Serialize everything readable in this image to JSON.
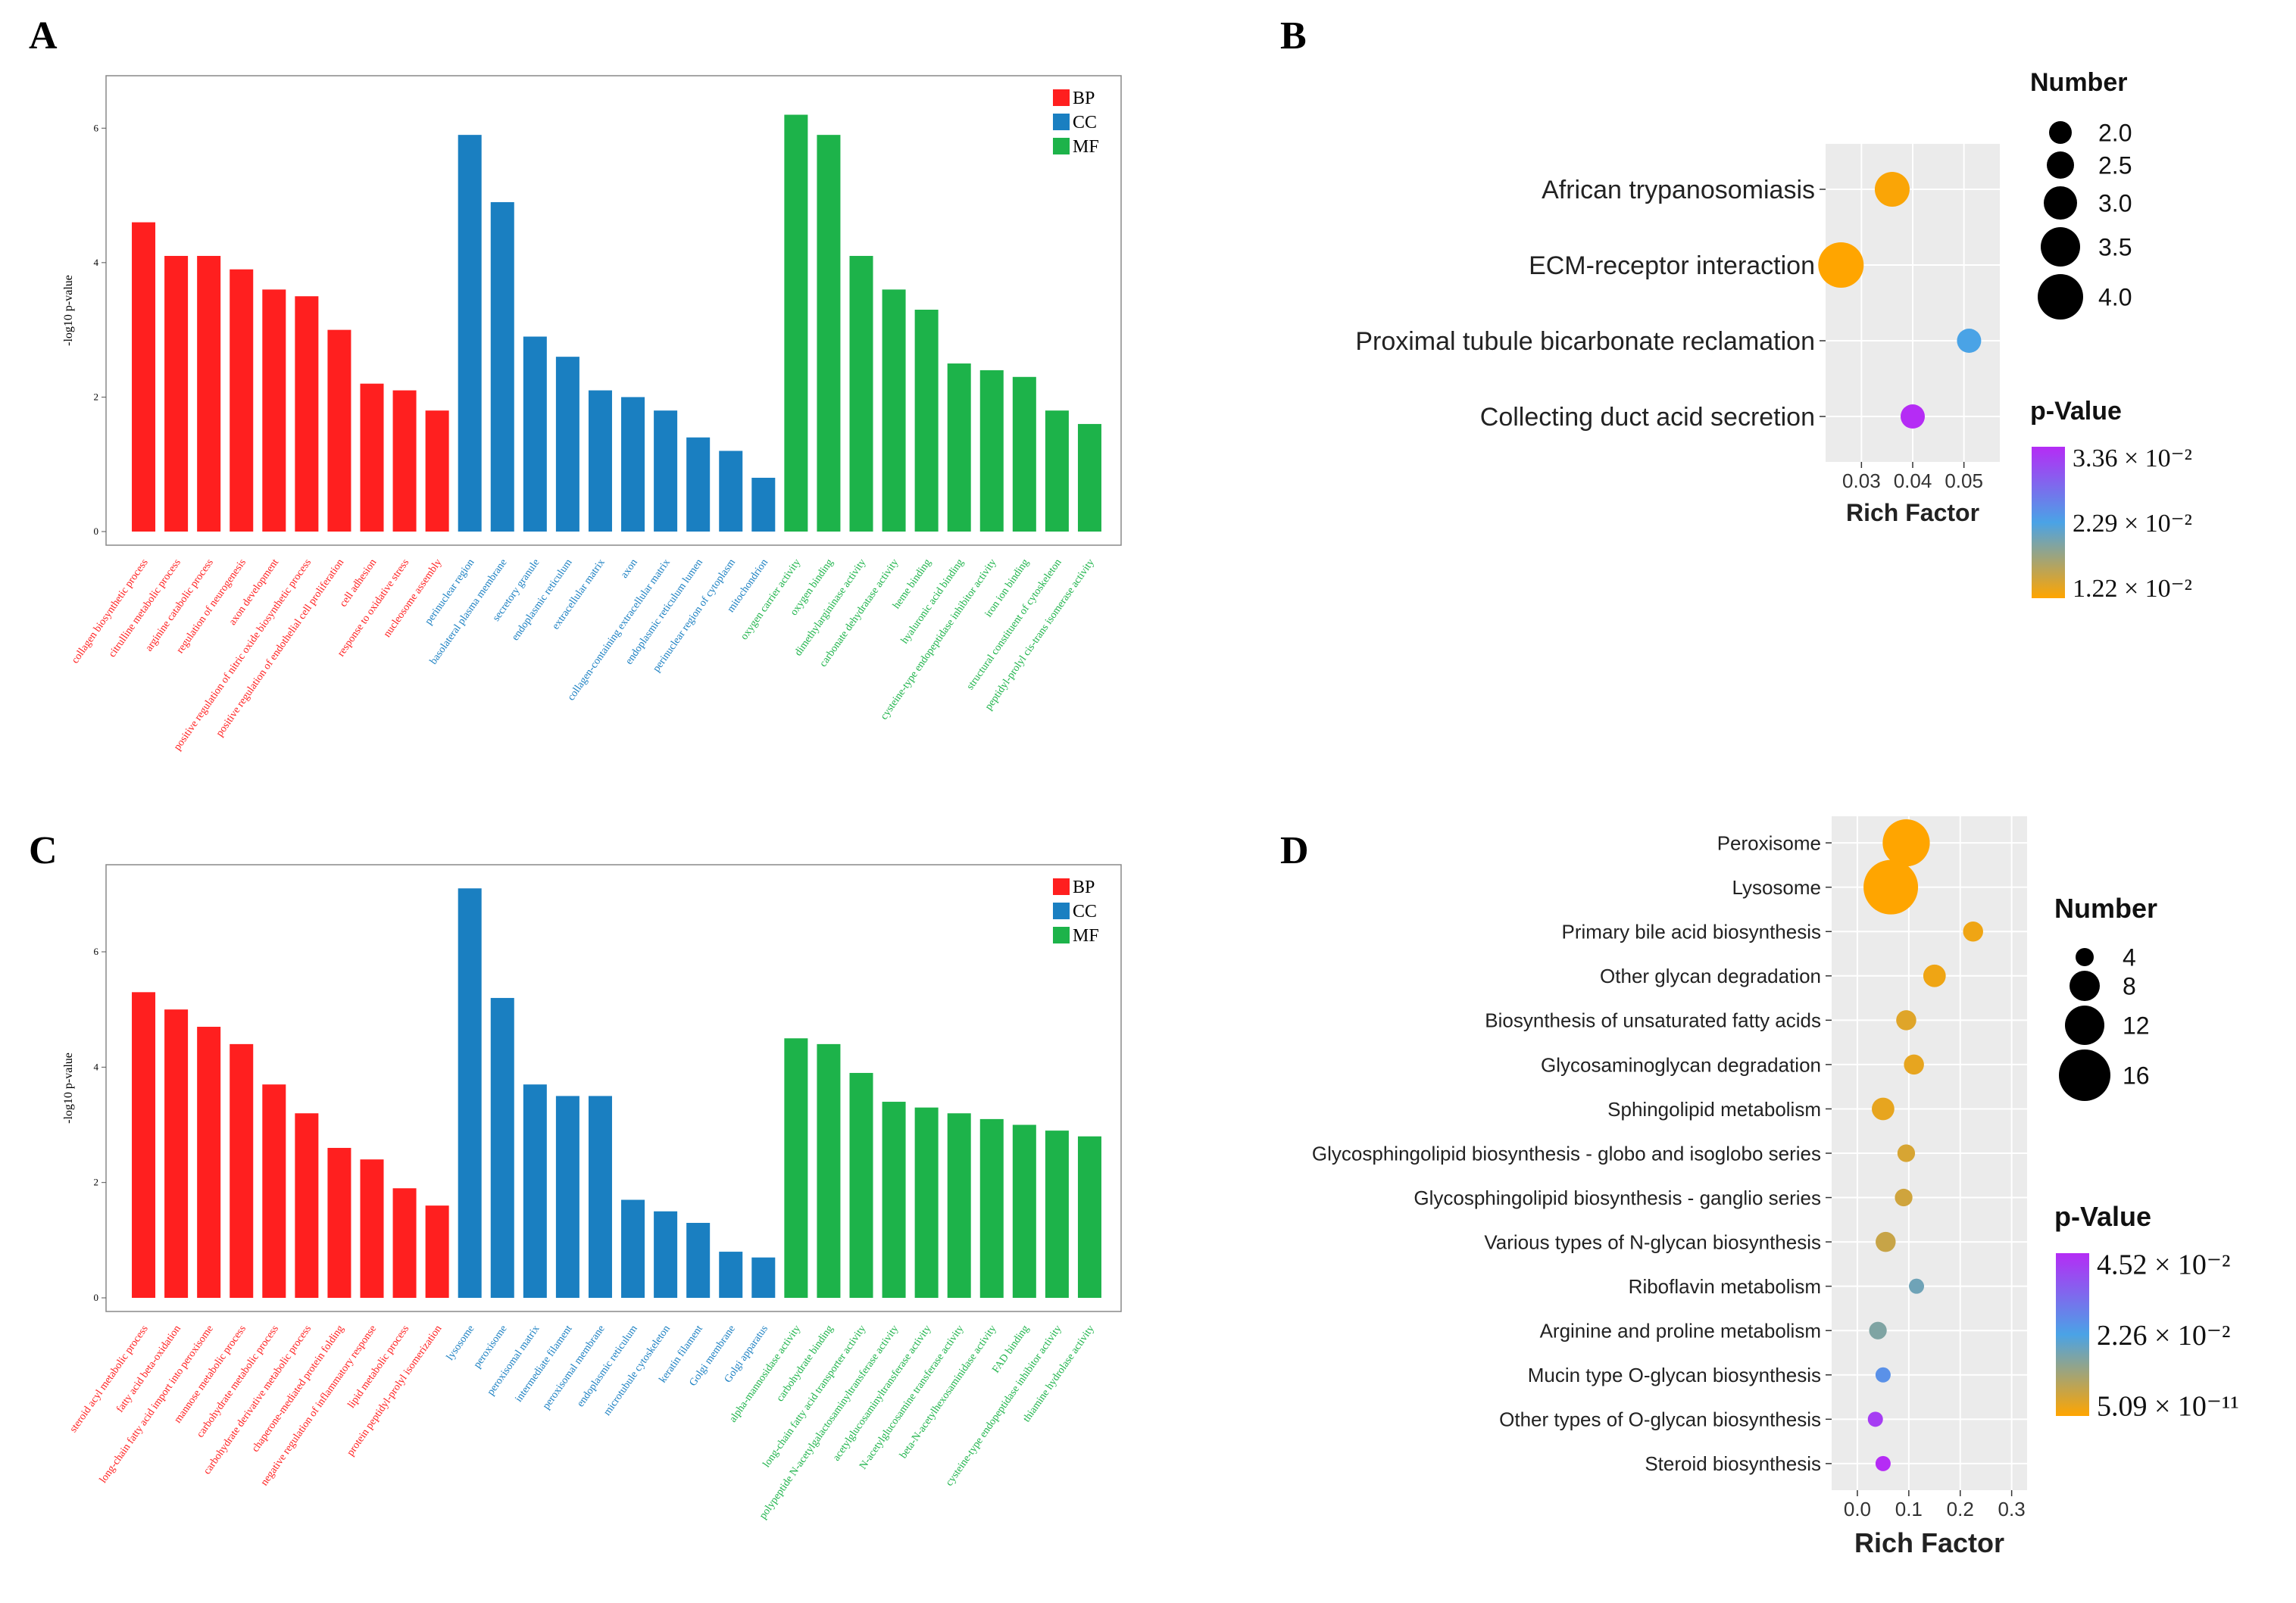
{
  "colors": {
    "BP": "#ff1f1f",
    "CC": "#1a7fc1",
    "MF": "#1db34a",
    "pv_low": "#ffa500",
    "pv_mid": "#4aa3e6",
    "pv_high": "#b52cf5"
  },
  "chart_data": [
    {
      "panel": "A",
      "type": "bar",
      "ylabel": "-log10 p-value",
      "ylim": [
        0,
        6.6
      ],
      "yticks": [
        "0",
        "2",
        "4",
        "6"
      ],
      "legend": [
        "BP",
        "CC",
        "MF"
      ],
      "legend_position": "top-right",
      "bars": [
        {
          "label": "collagen biosynthetic process",
          "group": "BP",
          "value": 4.6
        },
        {
          "label": "citrulline metabolic process",
          "group": "BP",
          "value": 4.1
        },
        {
          "label": "arginine catabolic process",
          "group": "BP",
          "value": 4.1
        },
        {
          "label": "regulation of neurogenesis",
          "group": "BP",
          "value": 3.9
        },
        {
          "label": "axon development",
          "group": "BP",
          "value": 3.6
        },
        {
          "label": "positive regulation of nitric oxide biosynthetic process",
          "group": "BP",
          "value": 3.5
        },
        {
          "label": "positive regulation of endothelial cell proliferation",
          "group": "BP",
          "value": 3.0
        },
        {
          "label": "cell adhesion",
          "group": "BP",
          "value": 2.2
        },
        {
          "label": "response to oxidative stress",
          "group": "BP",
          "value": 2.1
        },
        {
          "label": "nucleosome assembly",
          "group": "BP",
          "value": 1.8
        },
        {
          "label": "perinuclear region",
          "group": "CC",
          "value": 5.9
        },
        {
          "label": "basolateral plasma membrane",
          "group": "CC",
          "value": 4.9
        },
        {
          "label": "secretory granule",
          "group": "CC",
          "value": 2.9
        },
        {
          "label": "endoplasmic reticulum",
          "group": "CC",
          "value": 2.6
        },
        {
          "label": "extracellular matrix",
          "group": "CC",
          "value": 2.1
        },
        {
          "label": "axon",
          "group": "CC",
          "value": 2.0
        },
        {
          "label": "collagen-containing extracellular matrix",
          "group": "CC",
          "value": 1.8
        },
        {
          "label": "endoplasmic reticulum lumen",
          "group": "CC",
          "value": 1.4
        },
        {
          "label": "perinuclear region of cytoplasm",
          "group": "CC",
          "value": 1.2
        },
        {
          "label": "mitochondrion",
          "group": "CC",
          "value": 0.8
        },
        {
          "label": "oxygen carrier activity",
          "group": "MF",
          "value": 6.2
        },
        {
          "label": "oxygen binding",
          "group": "MF",
          "value": 5.9
        },
        {
          "label": "dimethylargininase activity",
          "group": "MF",
          "value": 4.1
        },
        {
          "label": "carbonate dehydratase activity",
          "group": "MF",
          "value": 3.6
        },
        {
          "label": "heme binding",
          "group": "MF",
          "value": 3.3
        },
        {
          "label": "hyaluronic acid binding",
          "group": "MF",
          "value": 2.5
        },
        {
          "label": "cysteine-type endopeptidase inhibitor activity",
          "group": "MF",
          "value": 2.4
        },
        {
          "label": "iron ion binding",
          "group": "MF",
          "value": 2.3
        },
        {
          "label": "structural constituent of cytoskeleton",
          "group": "MF",
          "value": 1.8
        },
        {
          "label": "peptidyl-prolyl cis-trans isomerase activity",
          "group": "MF",
          "value": 1.6
        }
      ]
    },
    {
      "panel": "B",
      "type": "scatter",
      "xlabel": "Rich Factor",
      "xticks": [
        "0.03",
        "0.04",
        "0.05"
      ],
      "xlim": [
        0.023,
        0.057
      ],
      "size_title": "Number",
      "size_legend": [
        "2.0",
        "2.5",
        "3.0",
        "3.5",
        "4.0"
      ],
      "color_title": "p-Value",
      "color_legend": [
        "3.36 × 10⁻²",
        "2.29 × 10⁻²",
        "1.22 × 10⁻²"
      ],
      "points": [
        {
          "term": "African trypanosomiasis",
          "rich_factor": 0.036,
          "number": 3,
          "pvalue": 0.0125
        },
        {
          "term": "ECM-receptor interaction",
          "rich_factor": 0.026,
          "number": 4,
          "pvalue": 0.0122
        },
        {
          "term": "Proximal tubule bicarbonate reclamation",
          "rich_factor": 0.051,
          "number": 2,
          "pvalue": 0.0229
        },
        {
          "term": "Collecting duct acid secretion",
          "rich_factor": 0.04,
          "number": 2,
          "pvalue": 0.0336
        }
      ]
    },
    {
      "panel": "C",
      "type": "bar",
      "ylabel": "-log10 p-value",
      "ylim": [
        0,
        7.3
      ],
      "yticks": [
        "0",
        "2",
        "4",
        "6"
      ],
      "legend": [
        "BP",
        "CC",
        "MF"
      ],
      "legend_position": "top-right",
      "bars": [
        {
          "label": "steroid acyl metabolic process",
          "group": "BP",
          "value": 5.3
        },
        {
          "label": "fatty acid beta-oxidation",
          "group": "BP",
          "value": 5.0
        },
        {
          "label": "long-chain fatty acid import into peroxisome",
          "group": "BP",
          "value": 4.7
        },
        {
          "label": "mannose metabolic process",
          "group": "BP",
          "value": 4.4
        },
        {
          "label": "carbohydrate metabolic process",
          "group": "BP",
          "value": 3.7
        },
        {
          "label": "carbohydrate derivative metabolic process",
          "group": "BP",
          "value": 3.2
        },
        {
          "label": "chaperone-mediated protein folding",
          "group": "BP",
          "value": 2.6
        },
        {
          "label": "negative regulation of inflammatory response",
          "group": "BP",
          "value": 2.4
        },
        {
          "label": "lipid metabolic process",
          "group": "BP",
          "value": 1.9
        },
        {
          "label": "protein peptidyl-prolyl isomerization",
          "group": "BP",
          "value": 1.6
        },
        {
          "label": "lysosome",
          "group": "CC",
          "value": 7.1
        },
        {
          "label": "peroxisome",
          "group": "CC",
          "value": 5.2
        },
        {
          "label": "peroxisomal matrix",
          "group": "CC",
          "value": 3.7
        },
        {
          "label": "intermediate filament",
          "group": "CC",
          "value": 3.5
        },
        {
          "label": "peroxisomal membrane",
          "group": "CC",
          "value": 3.5
        },
        {
          "label": "endoplasmic reticulum",
          "group": "CC",
          "value": 1.7
        },
        {
          "label": "microtubule cytoskeleton",
          "group": "CC",
          "value": 1.5
        },
        {
          "label": "keratin filament",
          "group": "CC",
          "value": 1.3
        },
        {
          "label": "Golgi membrane",
          "group": "CC",
          "value": 0.8
        },
        {
          "label": "Golgi apparatus",
          "group": "CC",
          "value": 0.7
        },
        {
          "label": "alpha-mannosidase activity",
          "group": "MF",
          "value": 4.5
        },
        {
          "label": "carbohydrate binding",
          "group": "MF",
          "value": 4.4
        },
        {
          "label": "long-chain fatty acid transporter activity",
          "group": "MF",
          "value": 3.9
        },
        {
          "label": "polypeptide N-acetylgalactosaminyltransferase activity",
          "group": "MF",
          "value": 3.4
        },
        {
          "label": "acetylglucosaminyltransferase activity",
          "group": "MF",
          "value": 3.3
        },
        {
          "label": "N-acetylglucosamine transferase activity",
          "group": "MF",
          "value": 3.2
        },
        {
          "label": "beta-N-acetylhexosaminidase activity",
          "group": "MF",
          "value": 3.1
        },
        {
          "label": "FAD binding",
          "group": "MF",
          "value": 3.0
        },
        {
          "label": "cysteine-type endopeptidase inhibitor activity",
          "group": "MF",
          "value": 2.9
        },
        {
          "label": "thiamine hydrolase activity",
          "group": "MF",
          "value": 2.8
        }
      ]
    },
    {
      "panel": "D",
      "type": "scatter",
      "xlabel": "Rich Factor",
      "xticks": [
        "0.0",
        "0.1",
        "0.2",
        "0.3"
      ],
      "xlim": [
        -0.05,
        0.33
      ],
      "size_title": "Number",
      "size_legend": [
        "4",
        "8",
        "12",
        "16"
      ],
      "color_title": "p-Value",
      "color_legend": [
        "4.52 × 10⁻²",
        "2.26 × 10⁻²",
        "5.09 × 10⁻¹¹"
      ],
      "points": [
        {
          "term": "Peroxisome",
          "rich_factor": 0.095,
          "number": 15,
          "pvalue": 0.0
        },
        {
          "term": "Lysosome",
          "rich_factor": 0.065,
          "number": 18,
          "pvalue": 0.0
        },
        {
          "term": "Primary bile acid biosynthesis",
          "rich_factor": 0.225,
          "number": 4,
          "pvalue": 0.002
        },
        {
          "term": "Other glycan degradation",
          "rich_factor": 0.15,
          "number": 5,
          "pvalue": 0.002
        },
        {
          "term": "Biosynthesis of unsaturated fatty acids",
          "rich_factor": 0.095,
          "number": 4,
          "pvalue": 0.004
        },
        {
          "term": "Glycosaminoglycan degradation",
          "rich_factor": 0.11,
          "number": 4,
          "pvalue": 0.003
        },
        {
          "term": "Sphingolipid metabolism",
          "rich_factor": 0.05,
          "number": 5,
          "pvalue": 0.003
        },
        {
          "term": "Glycosphingolipid biosynthesis - globo and isoglobo series",
          "rich_factor": 0.095,
          "number": 3,
          "pvalue": 0.005
        },
        {
          "term": "Glycosphingolipid biosynthesis - ganglio series",
          "rich_factor": 0.09,
          "number": 3,
          "pvalue": 0.006
        },
        {
          "term": "Various types of N-glycan biosynthesis",
          "rich_factor": 0.055,
          "number": 4,
          "pvalue": 0.007
        },
        {
          "term": "Riboflavin metabolism",
          "rich_factor": 0.115,
          "number": 2,
          "pvalue": 0.018
        },
        {
          "term": "Arginine and proline metabolism",
          "rich_factor": 0.04,
          "number": 3,
          "pvalue": 0.016
        },
        {
          "term": "Mucin type O-glycan biosynthesis",
          "rich_factor": 0.05,
          "number": 2,
          "pvalue": 0.026
        },
        {
          "term": "Other types of O-glycan biosynthesis",
          "rich_factor": 0.035,
          "number": 2,
          "pvalue": 0.042
        },
        {
          "term": "Steroid biosynthesis",
          "rich_factor": 0.05,
          "number": 2,
          "pvalue": 0.0452
        }
      ]
    }
  ]
}
